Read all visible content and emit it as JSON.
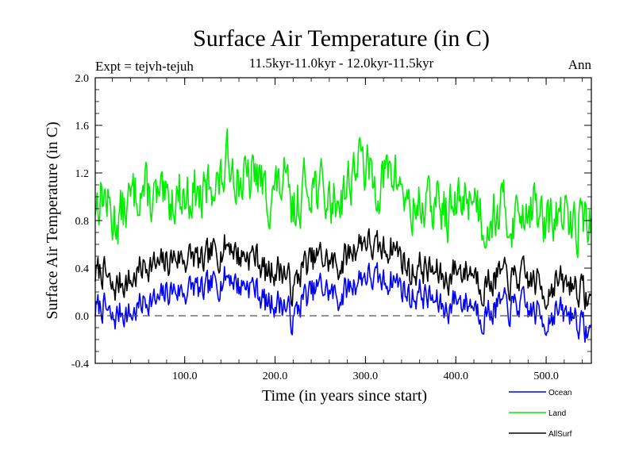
{
  "chart_data": {
    "type": "line",
    "title": "Surface Air Temperature (in C)",
    "subtitle": "11.5kyr-11.0kyr - 12.0kyr-11.5kyr",
    "left_label": "Expt = tejvh-tejuh",
    "right_label": "Ann",
    "xlabel": "Time (in years since start)",
    "ylabel": "Surface Air Temperature (in C)",
    "xlim": [
      1,
      550
    ],
    "ylim": [
      -0.4,
      2.0
    ],
    "x_ticks": [
      100,
      200,
      300,
      400,
      500
    ],
    "x_tick_labels": [
      "100.0",
      "200.0",
      "300.0",
      "400.0",
      "500.0"
    ],
    "y_ticks": [
      -0.4,
      0.0,
      0.4,
      0.8,
      1.2,
      1.6,
      2.0
    ],
    "y_tick_labels": [
      "-0.4",
      "0.0",
      "0.4",
      "0.8",
      "1.2",
      "1.6",
      "2.0"
    ],
    "zero_line": 0.0,
    "series": [
      {
        "name": "Ocean",
        "color": "#0000ff",
        "x": [
          1,
          10,
          20,
          30,
          40,
          50,
          60,
          70,
          80,
          90,
          100,
          110,
          120,
          130,
          140,
          150,
          160,
          170,
          180,
          190,
          200,
          210,
          220,
          230,
          240,
          250,
          260,
          270,
          280,
          290,
          300,
          310,
          320,
          330,
          340,
          350,
          360,
          370,
          380,
          390,
          400,
          410,
          420,
          430,
          440,
          450,
          460,
          470,
          480,
          490,
          500,
          510,
          520,
          530,
          540,
          550
        ],
        "values": [
          0.05,
          0.08,
          -0.05,
          0.05,
          0.0,
          0.08,
          0.15,
          0.1,
          0.2,
          0.22,
          0.2,
          0.25,
          0.18,
          0.25,
          0.3,
          0.35,
          0.25,
          0.28,
          0.22,
          0.1,
          0.12,
          0.1,
          -0.05,
          0.15,
          0.18,
          0.25,
          0.2,
          0.15,
          0.22,
          0.3,
          0.35,
          0.3,
          0.28,
          0.32,
          0.25,
          0.15,
          0.2,
          0.15,
          0.1,
          0.05,
          0.15,
          0.12,
          0.1,
          0.0,
          0.05,
          0.1,
          0.05,
          0.1,
          0.05,
          0.02,
          -0.05,
          0.05,
          0.0,
          0.03,
          -0.1,
          -0.15
        ]
      },
      {
        "name": "Land",
        "color": "#00ee00",
        "x": [
          1,
          10,
          20,
          30,
          40,
          50,
          60,
          70,
          80,
          90,
          100,
          110,
          120,
          130,
          140,
          150,
          160,
          170,
          180,
          190,
          200,
          210,
          220,
          230,
          240,
          250,
          260,
          270,
          280,
          290,
          300,
          310,
          320,
          330,
          340,
          350,
          360,
          370,
          380,
          390,
          400,
          410,
          420,
          430,
          440,
          450,
          460,
          470,
          480,
          490,
          500,
          510,
          520,
          530,
          540,
          550
        ],
        "values": [
          0.95,
          1.05,
          0.8,
          0.85,
          0.95,
          1.1,
          1.0,
          0.95,
          0.9,
          1.05,
          1.0,
          1.05,
          0.95,
          1.15,
          1.1,
          1.35,
          1.15,
          1.1,
          1.2,
          1.0,
          1.05,
          1.1,
          0.85,
          1.05,
          1.15,
          1.05,
          0.95,
          1.0,
          1.1,
          1.3,
          1.25,
          1.1,
          1.15,
          1.2,
          1.1,
          0.85,
          0.95,
          0.9,
          0.95,
          0.85,
          0.9,
          1.0,
          1.05,
          0.8,
          0.85,
          0.9,
          0.8,
          0.85,
          0.95,
          0.9,
          0.7,
          0.85,
          0.8,
          0.75,
          0.85,
          0.75
        ]
      },
      {
        "name": "AllSurf",
        "color": "#000000",
        "x": [
          1,
          10,
          20,
          30,
          40,
          50,
          60,
          70,
          80,
          90,
          100,
          110,
          120,
          130,
          140,
          150,
          160,
          170,
          180,
          190,
          200,
          210,
          220,
          230,
          240,
          250,
          260,
          270,
          280,
          290,
          300,
          310,
          320,
          330,
          340,
          350,
          360,
          370,
          380,
          390,
          400,
          410,
          420,
          430,
          440,
          450,
          460,
          470,
          480,
          490,
          500,
          510,
          520,
          530,
          540,
          550
        ],
        "values": [
          0.35,
          0.38,
          0.2,
          0.3,
          0.28,
          0.38,
          0.45,
          0.4,
          0.45,
          0.5,
          0.48,
          0.5,
          0.42,
          0.52,
          0.55,
          0.62,
          0.5,
          0.52,
          0.5,
          0.35,
          0.4,
          0.38,
          0.2,
          0.42,
          0.45,
          0.5,
          0.45,
          0.42,
          0.5,
          0.6,
          0.65,
          0.55,
          0.55,
          0.6,
          0.5,
          0.35,
          0.42,
          0.38,
          0.35,
          0.3,
          0.4,
          0.38,
          0.38,
          0.25,
          0.3,
          0.35,
          0.28,
          0.33,
          0.3,
          0.28,
          0.18,
          0.3,
          0.25,
          0.28,
          0.2,
          0.1
        ]
      }
    ]
  }
}
